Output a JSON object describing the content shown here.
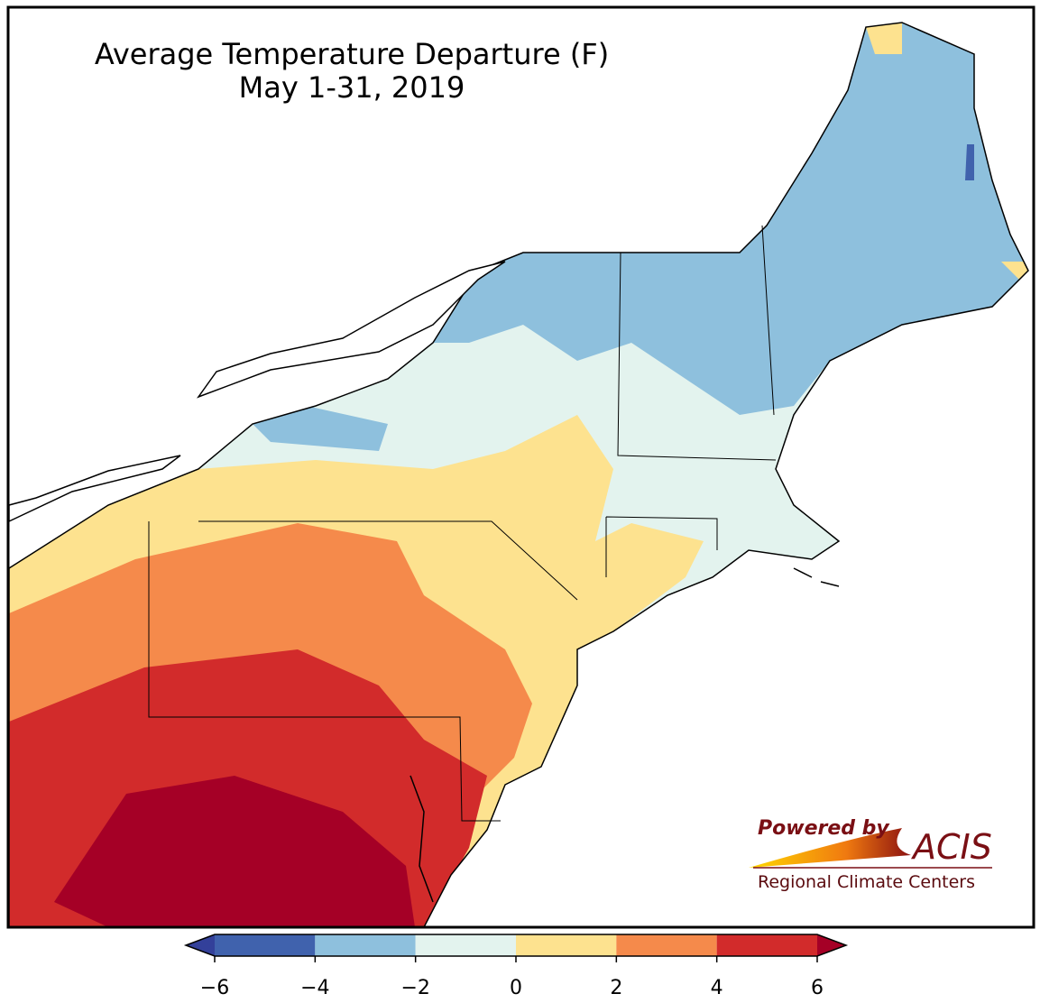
{
  "header": {
    "title": "Average Temperature Departure (F)",
    "subtitle": "May 1-31, 2019"
  },
  "legend": {
    "ticks": [
      {
        "value": -6,
        "label": "−6"
      },
      {
        "value": -4,
        "label": "−4"
      },
      {
        "value": -2,
        "label": "−2"
      },
      0,
      2,
      4,
      6
    ],
    "colors": [
      "#4062ad",
      "#8ec0dd",
      "#e3f3ee",
      "#fde28f",
      "#f58a4b",
      "#d22b2b"
    ],
    "under": "#33409a",
    "over": "#a50026"
  },
  "logo": {
    "powered": "Powered by",
    "name": "ACIS",
    "tagline": "Regional Climate Centers"
  }
}
